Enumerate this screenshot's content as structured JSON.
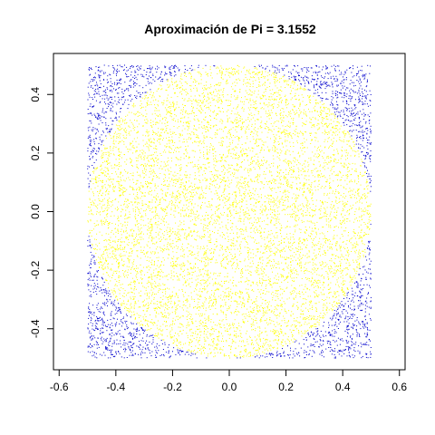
{
  "chart_data": {
    "type": "scatter",
    "title": "Aproximación de Pi = 3.1552",
    "xlabel": "",
    "ylabel": "",
    "xlim": [
      -0.62,
      0.62
    ],
    "ylim": [
      -0.54,
      0.54
    ],
    "x_ticks": [
      -0.6,
      -0.4,
      -0.2,
      0.0,
      0.2,
      0.4,
      0.6
    ],
    "x_tick_labels": [
      "-0.6",
      "-0.4",
      "-0.2",
      "0.0",
      "0.2",
      "0.4",
      "0.6"
    ],
    "y_ticks": [
      -0.4,
      -0.2,
      0.0,
      0.2,
      0.4
    ],
    "y_tick_labels": [
      "-0.4",
      "-0.2",
      "0.0",
      "0.2",
      "0.4"
    ],
    "grid": false,
    "legend": "none",
    "series": [
      {
        "region": "inside-circle",
        "color": "#ffff00"
      },
      {
        "region": "outside-circle",
        "color": "#0000cc"
      }
    ],
    "sample_domain": {
      "x": [
        -0.5,
        0.5
      ],
      "y": [
        -0.5,
        0.5
      ]
    },
    "circle_radius": 0.5,
    "total_points": 10000
  }
}
